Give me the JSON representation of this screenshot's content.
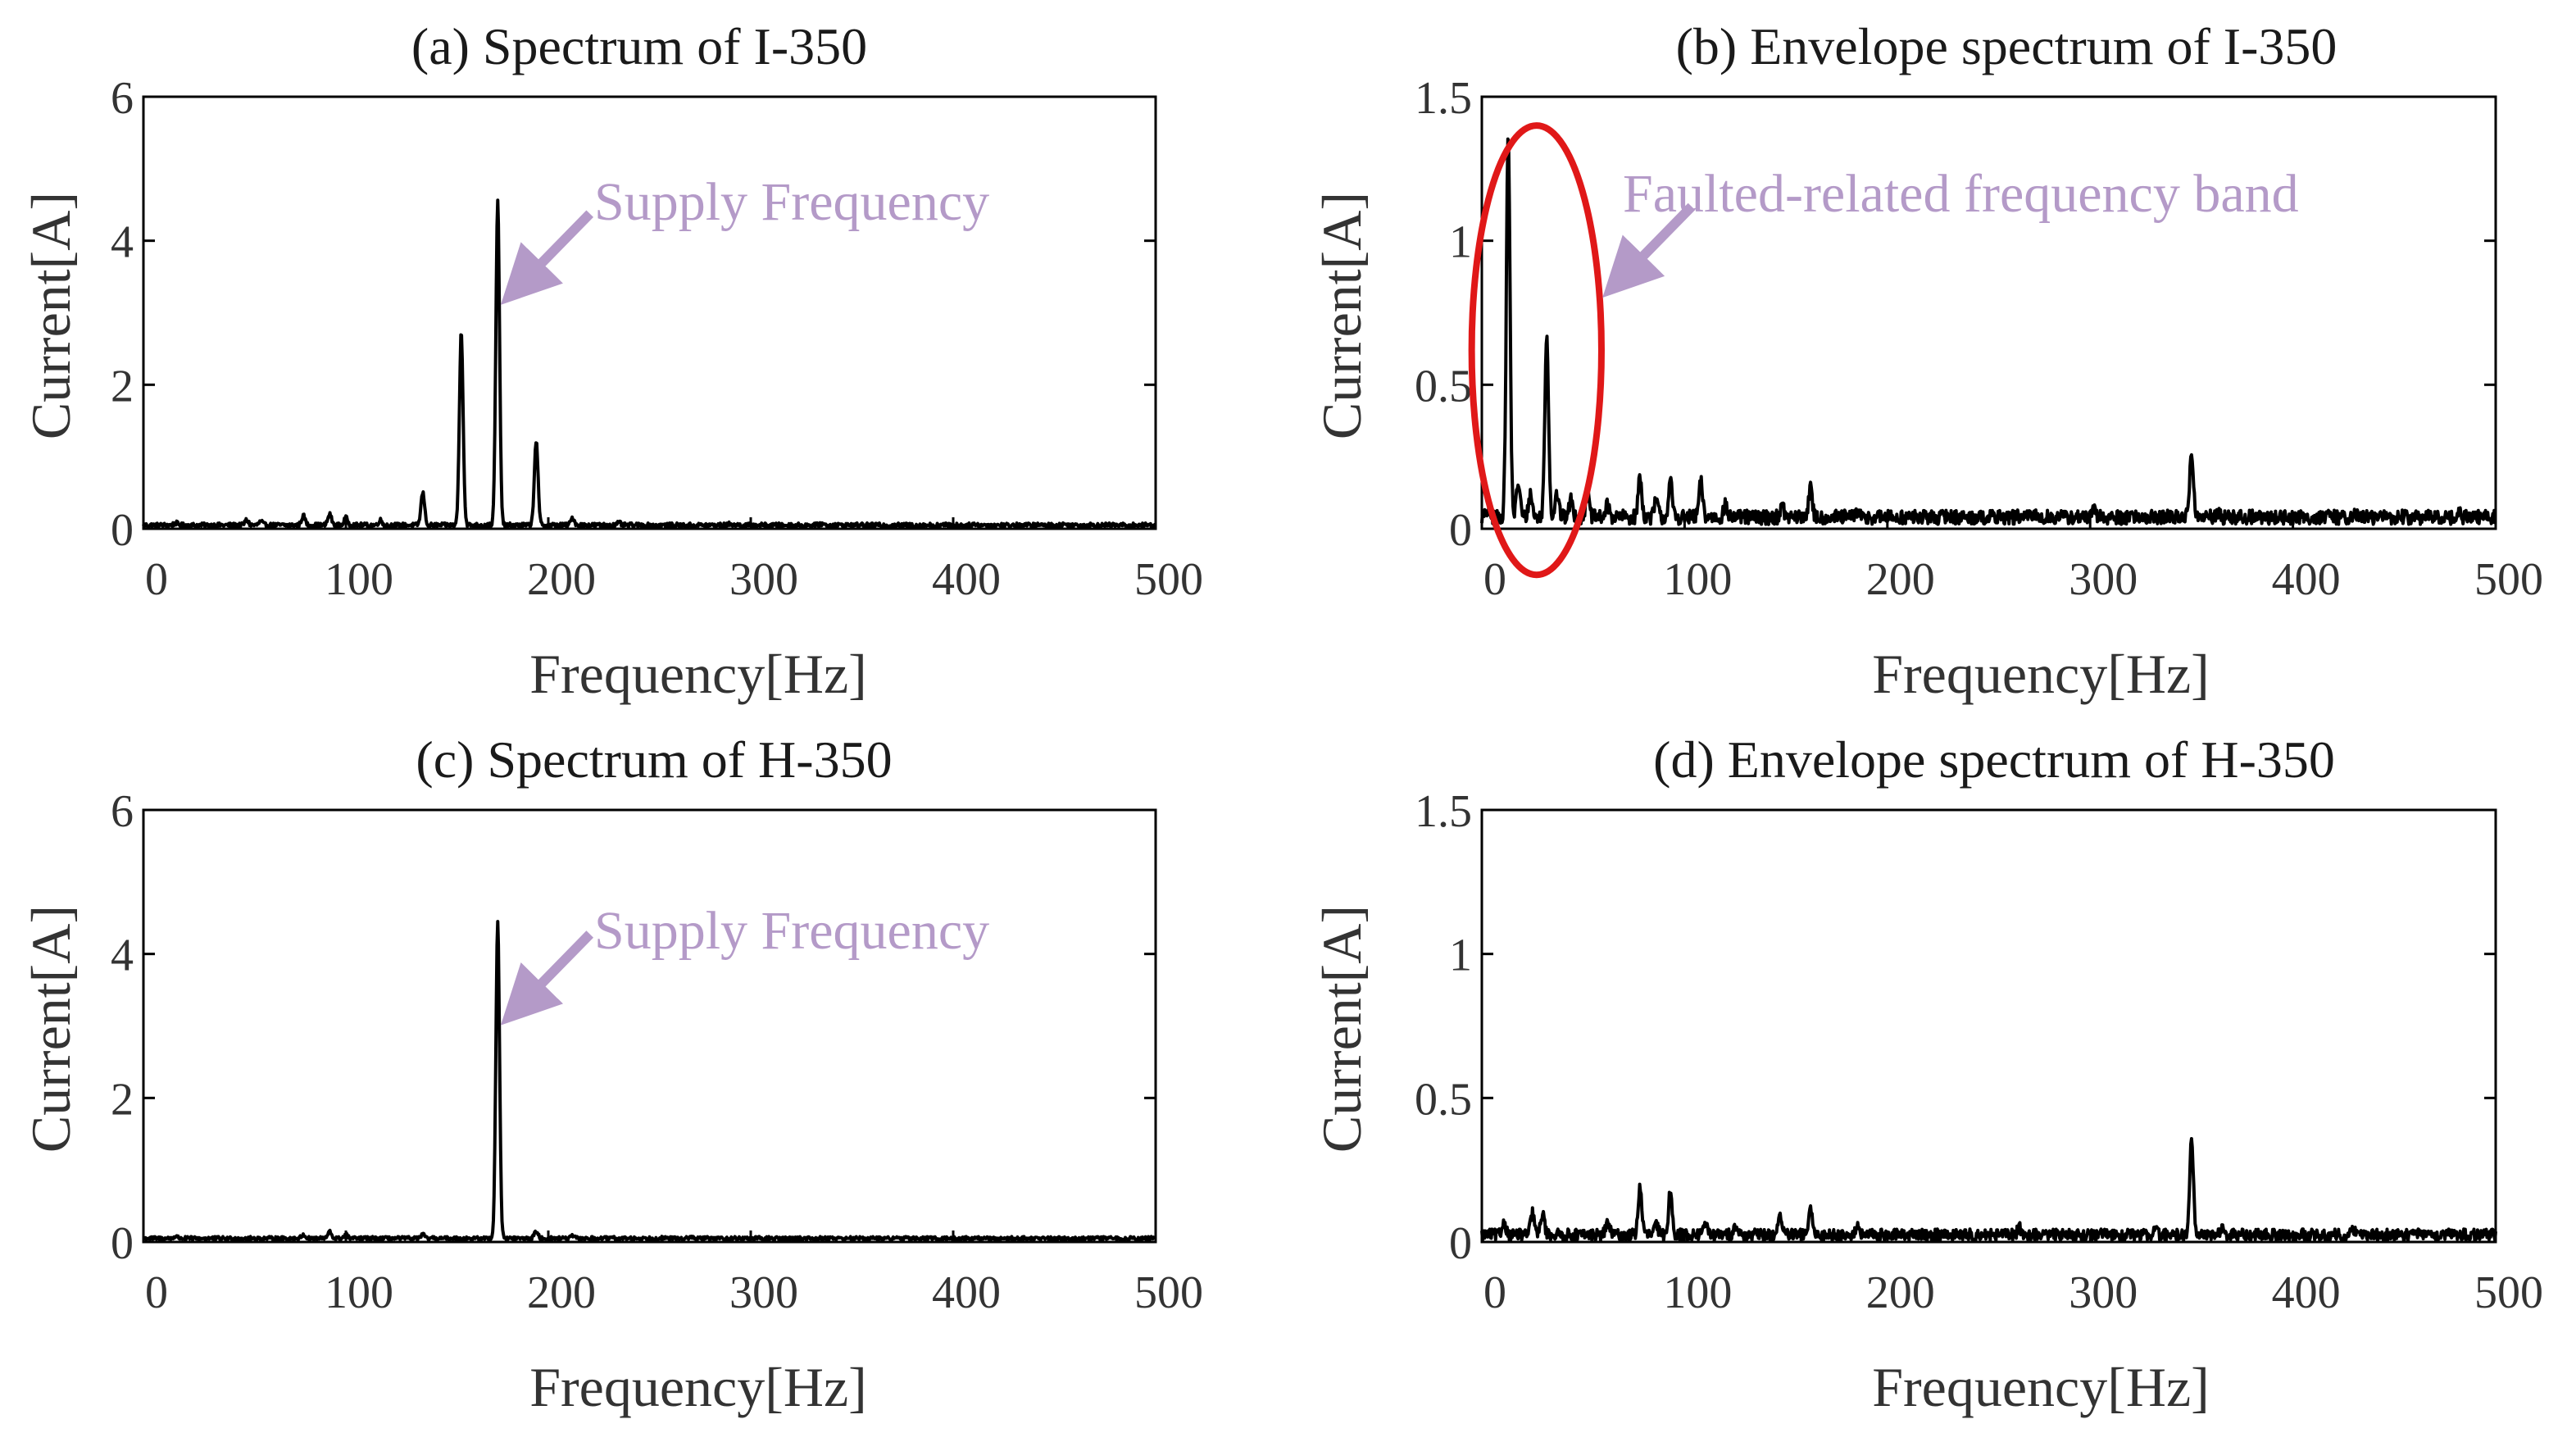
{
  "figure": {
    "annotation_color": "#b49ac8",
    "highlight_color": "#e01818",
    "trace_color": "#000000"
  },
  "chart_data": [
    {
      "id": "a",
      "type": "line",
      "title": "(a)  Spectrum of I-350",
      "xlabel": "Frequency[Hz]",
      "ylabel": "Current[A]",
      "xlim": [
        0,
        500
      ],
      "ylim": [
        0,
        6
      ],
      "xticks": [
        0,
        100,
        200,
        300,
        400,
        500
      ],
      "xtick_labels": [
        "0",
        "100",
        "200",
        "300",
        "400",
        "500"
      ],
      "yticks": [
        0,
        2,
        4,
        6
      ],
      "ytick_labels": [
        "0",
        "2",
        "4",
        "6"
      ],
      "grid": false,
      "baseline": 0.05,
      "noise_amplitude": 0.03,
      "peaks": [
        {
          "x": 16,
          "y": 0.08
        },
        {
          "x": 51,
          "y": 0.12
        },
        {
          "x": 58,
          "y": 0.1
        },
        {
          "x": 79,
          "y": 0.18
        },
        {
          "x": 92,
          "y": 0.2
        },
        {
          "x": 100,
          "y": 0.15
        },
        {
          "x": 117,
          "y": 0.12
        },
        {
          "x": 138,
          "y": 0.5
        },
        {
          "x": 157,
          "y": 2.75
        },
        {
          "x": 175,
          "y": 4.55
        },
        {
          "x": 194,
          "y": 1.22
        },
        {
          "x": 212,
          "y": 0.15
        },
        {
          "x": 235,
          "y": 0.08
        },
        {
          "x": 290,
          "y": 0.07
        },
        {
          "x": 335,
          "y": 0.07
        },
        {
          "x": 410,
          "y": 0.06
        },
        {
          "x": 455,
          "y": 0.06
        }
      ],
      "annotation": {
        "text": "Supply Frequency",
        "arrow_to": {
          "x": 176,
          "y": 3.1
        }
      }
    },
    {
      "id": "b",
      "type": "line",
      "title": "(b) Envelope spectrum of I-350",
      "xlabel": "Frequency[Hz]",
      "ylabel": "Current[A]",
      "xlim": [
        0,
        500
      ],
      "ylim": [
        0,
        1.5
      ],
      "xticks": [
        0,
        100,
        200,
        300,
        400,
        500
      ],
      "xtick_labels": [
        "0",
        "100",
        "200",
        "300",
        "400",
        "500"
      ],
      "yticks": [
        0,
        0.5,
        1,
        1.5
      ],
      "ytick_labels": [
        "0",
        "0.5",
        "1",
        "1.5"
      ],
      "grid": false,
      "baseline": 0.04,
      "noise_amplitude": 0.025,
      "peaks": [
        {
          "x": 3,
          "y": 0.06
        },
        {
          "x": 13,
          "y": 1.37
        },
        {
          "x": 18,
          "y": 0.16
        },
        {
          "x": 24,
          "y": 0.12
        },
        {
          "x": 32,
          "y": 0.68
        },
        {
          "x": 37,
          "y": 0.12
        },
        {
          "x": 44,
          "y": 0.1
        },
        {
          "x": 52,
          "y": 0.12
        },
        {
          "x": 62,
          "y": 0.08
        },
        {
          "x": 78,
          "y": 0.18
        },
        {
          "x": 86,
          "y": 0.1
        },
        {
          "x": 93,
          "y": 0.16
        },
        {
          "x": 108,
          "y": 0.16
        },
        {
          "x": 120,
          "y": 0.08
        },
        {
          "x": 148,
          "y": 0.08
        },
        {
          "x": 162,
          "y": 0.14
        },
        {
          "x": 185,
          "y": 0.06
        },
        {
          "x": 230,
          "y": 0.05
        },
        {
          "x": 272,
          "y": 0.05
        },
        {
          "x": 302,
          "y": 0.06
        },
        {
          "x": 320,
          "y": 0.05
        },
        {
          "x": 350,
          "y": 0.27
        },
        {
          "x": 363,
          "y": 0.05
        },
        {
          "x": 430,
          "y": 0.05
        },
        {
          "x": 482,
          "y": 0.05
        }
      ],
      "highlight": {
        "shape": "ellipse",
        "x_center": 27,
        "x_radius": 32,
        "y_center": 0.62,
        "y_radius": 0.78
      },
      "annotation": {
        "text": "Faulted-related frequency band",
        "arrow_to": {
          "x": 59,
          "y": 0.8
        }
      }
    },
    {
      "id": "c",
      "type": "line",
      "title": "(c)   Spectrum of H-350",
      "xlabel": "Frequency[Hz]",
      "ylabel": "Current[A]",
      "xlim": [
        0,
        500
      ],
      "ylim": [
        0,
        6
      ],
      "xticks": [
        0,
        100,
        200,
        300,
        400,
        500
      ],
      "xtick_labels": [
        "0",
        "100",
        "200",
        "300",
        "400",
        "500"
      ],
      "yticks": [
        0,
        2,
        4,
        6
      ],
      "ytick_labels": [
        "0",
        "2",
        "4",
        "6"
      ],
      "grid": false,
      "baseline": 0.05,
      "noise_amplitude": 0.025,
      "peaks": [
        {
          "x": 16,
          "y": 0.08
        },
        {
          "x": 79,
          "y": 0.1
        },
        {
          "x": 92,
          "y": 0.14
        },
        {
          "x": 100,
          "y": 0.1
        },
        {
          "x": 138,
          "y": 0.1
        },
        {
          "x": 175,
          "y": 4.45
        },
        {
          "x": 194,
          "y": 0.15
        },
        {
          "x": 212,
          "y": 0.08
        },
        {
          "x": 255,
          "y": 0.06
        },
        {
          "x": 271,
          "y": 0.06
        },
        {
          "x": 340,
          "y": 0.06
        },
        {
          "x": 410,
          "y": 0.05
        }
      ],
      "annotation": {
        "text": "Supply Frequency",
        "arrow_to": {
          "x": 176,
          "y": 3.0
        }
      }
    },
    {
      "id": "d",
      "type": "line",
      "title": "(d) Envelope spectrum of H-350",
      "xlabel": "Frequency[Hz]",
      "ylabel": "Current[A]",
      "xlim": [
        0,
        500
      ],
      "ylim": [
        0,
        1.5
      ],
      "xticks": [
        0,
        100,
        200,
        300,
        400,
        500
      ],
      "xtick_labels": [
        "0",
        "100",
        "200",
        "300",
        "400",
        "500"
      ],
      "yticks": [
        0,
        0.5,
        1,
        1.5
      ],
      "ytick_labels": [
        "0",
        "0.5",
        "1",
        "1.5"
      ],
      "grid": false,
      "baseline": 0.025,
      "noise_amplitude": 0.02,
      "peaks": [
        {
          "x": 11,
          "y": 0.07
        },
        {
          "x": 25,
          "y": 0.1
        },
        {
          "x": 30,
          "y": 0.1
        },
        {
          "x": 62,
          "y": 0.07
        },
        {
          "x": 78,
          "y": 0.19
        },
        {
          "x": 86,
          "y": 0.06
        },
        {
          "x": 93,
          "y": 0.18
        },
        {
          "x": 110,
          "y": 0.07
        },
        {
          "x": 125,
          "y": 0.06
        },
        {
          "x": 147,
          "y": 0.1
        },
        {
          "x": 162,
          "y": 0.11
        },
        {
          "x": 185,
          "y": 0.05
        },
        {
          "x": 265,
          "y": 0.05
        },
        {
          "x": 332,
          "y": 0.05
        },
        {
          "x": 350,
          "y": 0.36
        },
        {
          "x": 365,
          "y": 0.05
        },
        {
          "x": 430,
          "y": 0.04
        }
      ]
    }
  ]
}
